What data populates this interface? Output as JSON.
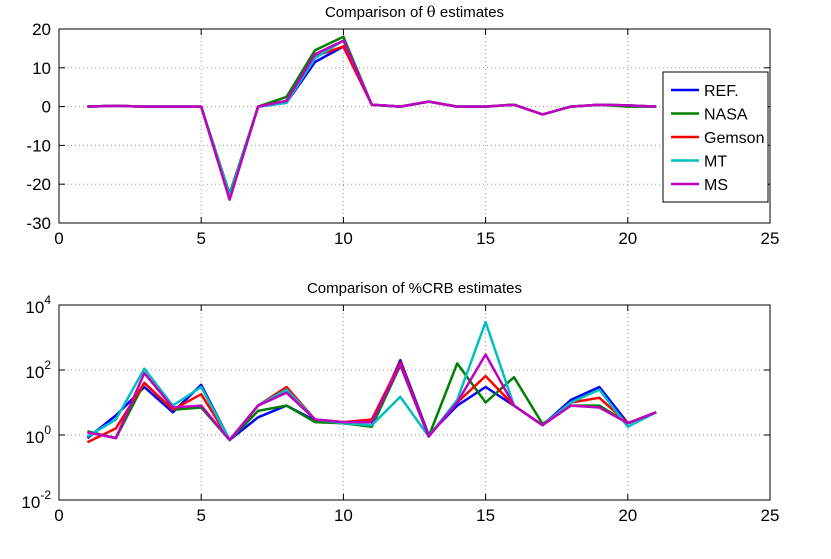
{
  "chart_data": [
    {
      "type": "line",
      "title_prefix": "Comparison of ",
      "title_symbol": "θ",
      "title_suffix": " estimates",
      "xlim": [
        0,
        25
      ],
      "ylim": [
        -30,
        20
      ],
      "xticks": [
        0,
        5,
        10,
        15,
        20,
        25
      ],
      "yticks": [
        -30,
        -20,
        -10,
        0,
        10,
        20
      ],
      "grid": true,
      "legend_position": "right",
      "x": [
        1,
        2,
        3,
        4,
        5,
        6,
        7,
        8,
        9,
        10,
        11,
        12,
        13,
        14,
        15,
        16,
        17,
        18,
        19,
        20,
        21
      ],
      "series": [
        {
          "name": "REF.",
          "color": "#0000ff",
          "values": [
            0,
            0.2,
            0,
            0,
            0,
            -23.5,
            0,
            1,
            11.5,
            15.5,
            0.5,
            0,
            1.3,
            0,
            0,
            0.5,
            -2,
            0,
            0.5,
            0.3,
            0
          ]
        },
        {
          "name": "NASA",
          "color": "#008000",
          "values": [
            0,
            0.2,
            0,
            0,
            0,
            -22.5,
            0,
            2.5,
            14.5,
            18,
            0.5,
            0,
            1.3,
            0,
            0,
            0.5,
            -2,
            0,
            0.5,
            0,
            0
          ]
        },
        {
          "name": "Gemson",
          "color": "#ff0000",
          "values": [
            0,
            0.2,
            0,
            0,
            0,
            -23.5,
            0,
            1.5,
            13,
            15.5,
            0.5,
            0,
            1.3,
            0,
            0,
            0.5,
            -2,
            0,
            0.5,
            0.3,
            0
          ]
        },
        {
          "name": "MT",
          "color": "#00bfbf",
          "values": [
            0,
            0.2,
            0,
            0,
            0,
            -23,
            0,
            1,
            12.5,
            17,
            0.5,
            0,
            1.3,
            0,
            0,
            0.5,
            -2,
            0,
            0.5,
            0.3,
            0
          ]
        },
        {
          "name": "MS",
          "color": "#bf00bf",
          "values": [
            0,
            0.2,
            0,
            0,
            0,
            -24,
            0,
            1.5,
            13.5,
            17,
            0.5,
            0,
            1.3,
            0,
            0,
            0.5,
            -2,
            0,
            0.5,
            0.3,
            0
          ]
        }
      ]
    },
    {
      "type": "line",
      "yscale": "log",
      "title": "Comparison of  %CRB estimates",
      "xlim": [
        0,
        25
      ],
      "ylim_log10": [
        -2,
        4
      ],
      "xticks": [
        0,
        5,
        10,
        15,
        20,
        25
      ],
      "yticks_log10": [
        -2,
        0,
        2,
        4
      ],
      "ytick_base": "10",
      "grid": true,
      "x": [
        1,
        2,
        3,
        4,
        5,
        6,
        7,
        8,
        9,
        10,
        11,
        12,
        13,
        14,
        15,
        16,
        17,
        18,
        19,
        20,
        21
      ],
      "series": [
        {
          "name": "REF.",
          "color": "#0000ff",
          "values": [
            0.8,
            4,
            30,
            5,
            35,
            0.7,
            3.5,
            8,
            2.8,
            2.3,
            2,
            200,
            1,
            8,
            30,
            8,
            2,
            12,
            30,
            2.3,
            5
          ]
        },
        {
          "name": "NASA",
          "color": "#008000",
          "values": [
            1.3,
            0.8,
            40,
            6,
            7,
            0.7,
            5.5,
            8,
            2.5,
            2.3,
            1.8,
            140,
            0.9,
            160,
            10,
            60,
            2.2,
            8,
            8,
            2.3,
            5
          ]
        },
        {
          "name": "Gemson",
          "color": "#ff0000",
          "values": [
            0.6,
            1.6,
            40,
            6,
            18,
            0.7,
            8,
            30,
            3,
            2.5,
            3,
            170,
            0.9,
            10,
            65,
            8,
            2,
            10,
            14,
            2.3,
            5
          ]
        },
        {
          "name": "MT",
          "color": "#00bfbf",
          "values": [
            0.9,
            3,
            110,
            8,
            30,
            0.7,
            8,
            25,
            3,
            2.3,
            2,
            15,
            0.9,
            12,
            3000,
            8,
            2,
            10,
            25,
            1.8,
            5
          ]
        },
        {
          "name": "MS",
          "color": "#bf00bf",
          "values": [
            1.2,
            0.8,
            80,
            7,
            8,
            0.7,
            8,
            20,
            3,
            2.5,
            2.5,
            150,
            0.9,
            10,
            300,
            8,
            2,
            8,
            7,
            2.3,
            5
          ]
        }
      ]
    }
  ]
}
